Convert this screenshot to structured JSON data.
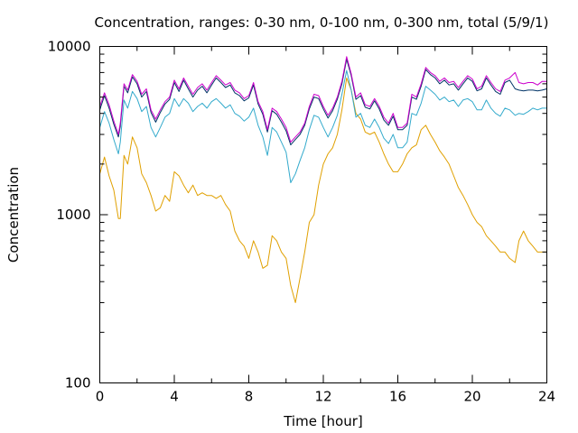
{
  "chart_data": {
    "type": "line",
    "title": "Concentration, ranges: 0-30 nm, 0-100 nm, 0-300 nm, total (5/9/1)",
    "xlabel": "Time [hour]",
    "ylabel": "Concentration",
    "xlim": [
      0,
      24
    ],
    "ylim": [
      100,
      10000
    ],
    "yscale": "log",
    "grid": false,
    "x_ticks": [
      0,
      4,
      8,
      12,
      16,
      20,
      24
    ],
    "x_tick_labels": [
      "0",
      "4",
      "8",
      "12",
      "16",
      "20",
      "24"
    ],
    "y_ticks_major": [
      100,
      1000,
      10000
    ],
    "y_tick_labels": [
      "100",
      "1000",
      "10000"
    ],
    "colors": {
      "total": "#cc00cc",
      "range_0_300": "#003366",
      "range_0_100": "#33aacc",
      "range_0_30": "#e0a000"
    },
    "series": [
      {
        "key": "total",
        "color": "#cc00cc",
        "x": [
          0,
          0.25,
          0.5,
          0.75,
          1,
          1.1,
          1.3,
          1.5,
          1.75,
          2,
          2.25,
          2.5,
          2.75,
          3,
          3.25,
          3.5,
          3.75,
          4,
          4.25,
          4.5,
          4.75,
          5,
          5.25,
          5.5,
          5.75,
          6,
          6.25,
          6.5,
          6.75,
          7,
          7.25,
          7.5,
          7.75,
          8,
          8.25,
          8.5,
          8.75,
          9,
          9.25,
          9.5,
          9.75,
          10,
          10.25,
          10.5,
          10.75,
          11,
          11.25,
          11.5,
          11.75,
          12,
          12.25,
          12.5,
          12.75,
          13,
          13.25,
          13.5,
          13.75,
          14,
          14.25,
          14.5,
          14.75,
          15,
          15.25,
          15.5,
          15.75,
          16,
          16.25,
          16.5,
          16.75,
          17,
          17.25,
          17.5,
          17.75,
          18,
          18.25,
          18.5,
          18.75,
          19,
          19.25,
          19.5,
          19.75,
          20,
          20.25,
          20.5,
          20.75,
          21,
          21.25,
          21.5,
          21.75,
          22,
          22.3,
          22.5,
          22.75,
          23,
          23.25,
          23.5,
          23.75,
          24
        ],
        "values": [
          4400,
          5300,
          4500,
          3600,
          3000,
          3500,
          6000,
          5500,
          6800,
          6200,
          5200,
          5600,
          4200,
          3700,
          4200,
          4700,
          5000,
          6300,
          5600,
          6500,
          5800,
          5200,
          5700,
          6000,
          5500,
          6100,
          6700,
          6300,
          5900,
          6100,
          5500,
          5300,
          4900,
          5100,
          6100,
          4700,
          4100,
          3200,
          4300,
          4100,
          3700,
          3300,
          2700,
          2900,
          3100,
          3500,
          4400,
          5200,
          5100,
          4400,
          3900,
          4300,
          5000,
          6200,
          8700,
          6900,
          5000,
          5300,
          4500,
          4400,
          4900,
          4400,
          3800,
          3500,
          4000,
          3300,
          3300,
          3500,
          5200,
          5000,
          6000,
          7500,
          7000,
          6700,
          6200,
          6500,
          6100,
          6200,
          5700,
          6200,
          6700,
          6400,
          5600,
          5800,
          6700,
          6100,
          5600,
          5400,
          6300,
          6500,
          7000,
          6100,
          6000,
          6100,
          6100,
          5900,
          6200,
          6200
        ]
      },
      {
        "key": "range_0_300",
        "color": "#003366",
        "x": [
          0,
          0.25,
          0.5,
          0.75,
          1,
          1.1,
          1.3,
          1.5,
          1.75,
          2,
          2.25,
          2.5,
          2.75,
          3,
          3.25,
          3.5,
          3.75,
          4,
          4.25,
          4.5,
          4.75,
          5,
          5.25,
          5.5,
          5.75,
          6,
          6.25,
          6.5,
          6.75,
          7,
          7.25,
          7.5,
          7.75,
          8,
          8.25,
          8.5,
          8.75,
          9,
          9.25,
          9.5,
          9.75,
          10,
          10.25,
          10.5,
          10.75,
          11,
          11.25,
          11.5,
          11.75,
          12,
          12.25,
          12.5,
          12.75,
          13,
          13.25,
          13.5,
          13.75,
          14,
          14.25,
          14.5,
          14.75,
          15,
          15.25,
          15.5,
          15.75,
          16,
          16.25,
          16.5,
          16.75,
          17,
          17.25,
          17.5,
          17.75,
          18,
          18.25,
          18.5,
          18.75,
          19,
          19.25,
          19.5,
          19.75,
          20,
          20.25,
          20.5,
          20.75,
          21,
          21.25,
          21.5,
          21.75,
          22,
          22.3,
          22.5,
          22.75,
          23,
          23.25,
          23.5,
          23.75,
          24
        ],
        "values": [
          4200,
          5100,
          4300,
          3450,
          2900,
          3350,
          5800,
          5300,
          6600,
          6000,
          5000,
          5400,
          4050,
          3550,
          4050,
          4550,
          4850,
          6100,
          5400,
          6300,
          5600,
          5000,
          5500,
          5800,
          5300,
          5900,
          6500,
          6100,
          5700,
          5900,
          5300,
          5100,
          4750,
          4950,
          5900,
          4550,
          3950,
          3100,
          4150,
          3950,
          3550,
          3150,
          2600,
          2800,
          3000,
          3400,
          4250,
          5000,
          4900,
          4250,
          3750,
          4150,
          4850,
          6000,
          8400,
          6700,
          4850,
          5100,
          4350,
          4250,
          4750,
          4250,
          3650,
          3400,
          3850,
          3200,
          3200,
          3400,
          5000,
          4850,
          5800,
          7300,
          6800,
          6500,
          6000,
          6300,
          5900,
          6000,
          5500,
          6000,
          6500,
          6200,
          5450,
          5600,
          6500,
          5900,
          5400,
          5200,
          6100,
          6300,
          5600,
          5500,
          5450,
          5500,
          5500,
          5450,
          5500,
          5600
        ]
      },
      {
        "key": "range_0_100",
        "color": "#33aacc",
        "x": [
          0,
          0.25,
          0.5,
          0.75,
          1,
          1.1,
          1.3,
          1.5,
          1.75,
          2,
          2.25,
          2.5,
          2.75,
          3,
          3.25,
          3.5,
          3.75,
          4,
          4.25,
          4.5,
          4.75,
          5,
          5.25,
          5.5,
          5.75,
          6,
          6.25,
          6.5,
          6.75,
          7,
          7.25,
          7.5,
          7.75,
          8,
          8.25,
          8.5,
          8.75,
          9,
          9.25,
          9.5,
          9.75,
          10,
          10.25,
          10.5,
          10.75,
          11,
          11.25,
          11.5,
          11.75,
          12,
          12.25,
          12.5,
          12.75,
          13,
          13.25,
          13.5,
          13.75,
          14,
          14.25,
          14.5,
          14.75,
          15,
          15.25,
          15.5,
          15.75,
          16,
          16.25,
          16.5,
          16.75,
          17,
          17.25,
          17.5,
          17.75,
          18,
          18.25,
          18.5,
          18.75,
          19,
          19.25,
          19.5,
          19.75,
          20,
          20.25,
          20.5,
          20.75,
          21,
          21.25,
          21.5,
          21.75,
          22,
          22.3,
          22.5,
          22.75,
          23,
          23.25,
          23.5,
          23.75,
          24
        ],
        "values": [
          3300,
          4100,
          3500,
          2800,
          2300,
          2700,
          4800,
          4300,
          5400,
          4900,
          4100,
          4400,
          3300,
          2900,
          3300,
          3800,
          4000,
          4900,
          4400,
          4900,
          4600,
          4100,
          4400,
          4600,
          4300,
          4700,
          4900,
          4600,
          4300,
          4500,
          4000,
          3850,
          3600,
          3800,
          4300,
          3400,
          2900,
          2250,
          3300,
          3100,
          2700,
          2350,
          1550,
          1750,
          2100,
          2500,
          3200,
          3900,
          3800,
          3300,
          2900,
          3300,
          3900,
          5200,
          7200,
          5500,
          3800,
          4000,
          3400,
          3300,
          3700,
          3300,
          2850,
          2650,
          3000,
          2500,
          2500,
          2700,
          4000,
          3900,
          4600,
          5800,
          5500,
          5200,
          4800,
          5000,
          4700,
          4800,
          4400,
          4800,
          4900,
          4700,
          4200,
          4200,
          4800,
          4300,
          4000,
          3850,
          4300,
          4200,
          3900,
          4000,
          3950,
          4100,
          4300,
          4200,
          4300,
          4300
        ]
      },
      {
        "key": "range_0_30",
        "color": "#e0a000",
        "x": [
          0,
          0.25,
          0.5,
          0.75,
          1,
          1.1,
          1.3,
          1.5,
          1.75,
          2,
          2.25,
          2.5,
          2.75,
          3,
          3.25,
          3.5,
          3.75,
          4,
          4.25,
          4.5,
          4.75,
          5,
          5.25,
          5.5,
          5.75,
          6,
          6.25,
          6.5,
          6.75,
          7,
          7.25,
          7.5,
          7.75,
          8,
          8.25,
          8.5,
          8.75,
          9,
          9.25,
          9.5,
          9.75,
          10,
          10.25,
          10.5,
          10.75,
          11,
          11.25,
          11.5,
          11.75,
          12,
          12.25,
          12.5,
          12.75,
          13,
          13.25,
          13.5,
          13.75,
          14,
          14.25,
          14.5,
          14.75,
          15,
          15.25,
          15.5,
          15.75,
          16,
          16.25,
          16.5,
          16.75,
          17,
          17.25,
          17.5,
          17.75,
          18,
          18.25,
          18.5,
          18.75,
          19,
          19.25,
          19.5,
          19.75,
          20,
          20.25,
          20.5,
          20.75,
          21,
          21.25,
          21.5,
          21.75,
          22,
          22.3,
          22.5,
          22.75,
          23,
          23.25,
          23.5,
          23.75,
          24
        ],
        "values": [
          1750,
          2200,
          1700,
          1400,
          950,
          950,
          2250,
          2000,
          2900,
          2500,
          1750,
          1550,
          1300,
          1050,
          1100,
          1300,
          1200,
          1800,
          1700,
          1500,
          1350,
          1500,
          1300,
          1350,
          1300,
          1300,
          1250,
          1300,
          1150,
          1050,
          800,
          700,
          650,
          550,
          700,
          600,
          480,
          500,
          750,
          700,
          600,
          550,
          380,
          300,
          420,
          600,
          900,
          1000,
          1500,
          2000,
          2300,
          2500,
          3000,
          4200,
          6500,
          5500,
          4000,
          3700,
          3100,
          3000,
          3100,
          2700,
          2300,
          2000,
          1800,
          1800,
          2000,
          2300,
          2500,
          2600,
          3200,
          3400,
          3000,
          2700,
          2400,
          2200,
          2000,
          1700,
          1450,
          1300,
          1150,
          1000,
          900,
          850,
          750,
          700,
          650,
          600,
          600,
          550,
          520,
          700,
          800,
          700,
          650,
          600,
          600,
          600
        ]
      }
    ]
  }
}
